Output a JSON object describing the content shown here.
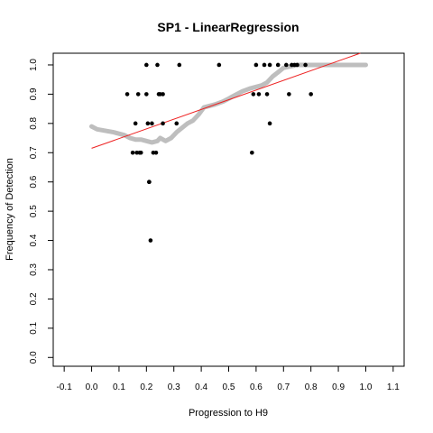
{
  "chart_data": {
    "type": "scatter",
    "title": "SP1 - LinearRegression",
    "xlabel": "Progression to H9",
    "ylabel": "Frequency of Detection",
    "xlim": [
      -0.14,
      1.14
    ],
    "ylim": [
      -0.03,
      1.04
    ],
    "xticks": [
      "-0.1",
      "0.0",
      "0.1",
      "0.2",
      "0.3",
      "0.4",
      "0.5",
      "0.6",
      "0.7",
      "0.8",
      "0.9",
      "1.0",
      "1.1"
    ],
    "yticks": [
      "0.0",
      "0.1",
      "0.2",
      "0.3",
      "0.4",
      "0.5",
      "0.6",
      "0.7",
      "0.8",
      "0.9",
      "1.0"
    ],
    "grid": false,
    "legend": "none",
    "colors": {
      "points": "#000000",
      "smooth": "#bebebe",
      "fit": "#ee2222"
    },
    "series": [
      {
        "kind": "points",
        "x": [
          0.13,
          0.15,
          0.16,
          0.165,
          0.17,
          0.175,
          0.18,
          0.2,
          0.2,
          0.205,
          0.21,
          0.21,
          0.215,
          0.22,
          0.225,
          0.235,
          0.24,
          0.245,
          0.25,
          0.26,
          0.26,
          0.31,
          0.32,
          0.465,
          0.585,
          0.59,
          0.6,
          0.61,
          0.63,
          0.64,
          0.65,
          0.65,
          0.68,
          0.71,
          0.72,
          0.73,
          0.74,
          0.75,
          0.78,
          0.8
        ],
        "y": [
          0.9,
          0.7,
          0.8,
          0.7,
          0.9,
          0.7,
          0.7,
          1.0,
          0.9,
          0.8,
          0.6,
          0.6,
          0.4,
          0.8,
          0.7,
          0.7,
          1.0,
          0.9,
          0.9,
          0.9,
          0.8,
          0.8,
          1.0,
          1.0,
          0.7,
          0.9,
          1.0,
          0.9,
          1.0,
          0.9,
          1.0,
          0.8,
          1.0,
          1.0,
          0.9,
          1.0,
          1.0,
          1.0,
          1.0,
          0.9
        ]
      },
      {
        "kind": "smooth",
        "x": [
          0.0,
          0.02,
          0.05,
          0.08,
          0.1,
          0.12,
          0.14,
          0.16,
          0.18,
          0.2,
          0.22,
          0.24,
          0.25,
          0.27,
          0.29,
          0.31,
          0.33,
          0.35,
          0.37,
          0.39,
          0.41,
          0.43,
          0.45,
          0.48,
          0.5,
          0.52,
          0.55,
          0.58,
          0.6,
          0.62,
          0.64,
          0.66,
          0.68,
          0.7,
          0.75,
          0.8,
          0.85,
          0.9,
          0.95,
          1.0
        ],
        "y": [
          0.79,
          0.78,
          0.775,
          0.77,
          0.765,
          0.76,
          0.75,
          0.745,
          0.745,
          0.74,
          0.735,
          0.74,
          0.75,
          0.74,
          0.75,
          0.77,
          0.785,
          0.8,
          0.81,
          0.83,
          0.855,
          0.86,
          0.865,
          0.875,
          0.885,
          0.895,
          0.91,
          0.92,
          0.925,
          0.93,
          0.94,
          0.96,
          0.975,
          0.99,
          1.0,
          1.0,
          1.0,
          1.0,
          1.0,
          1.0
        ]
      },
      {
        "kind": "fit",
        "x": [
          0.0,
          0.98
        ],
        "y": [
          0.715,
          1.04
        ]
      }
    ]
  }
}
